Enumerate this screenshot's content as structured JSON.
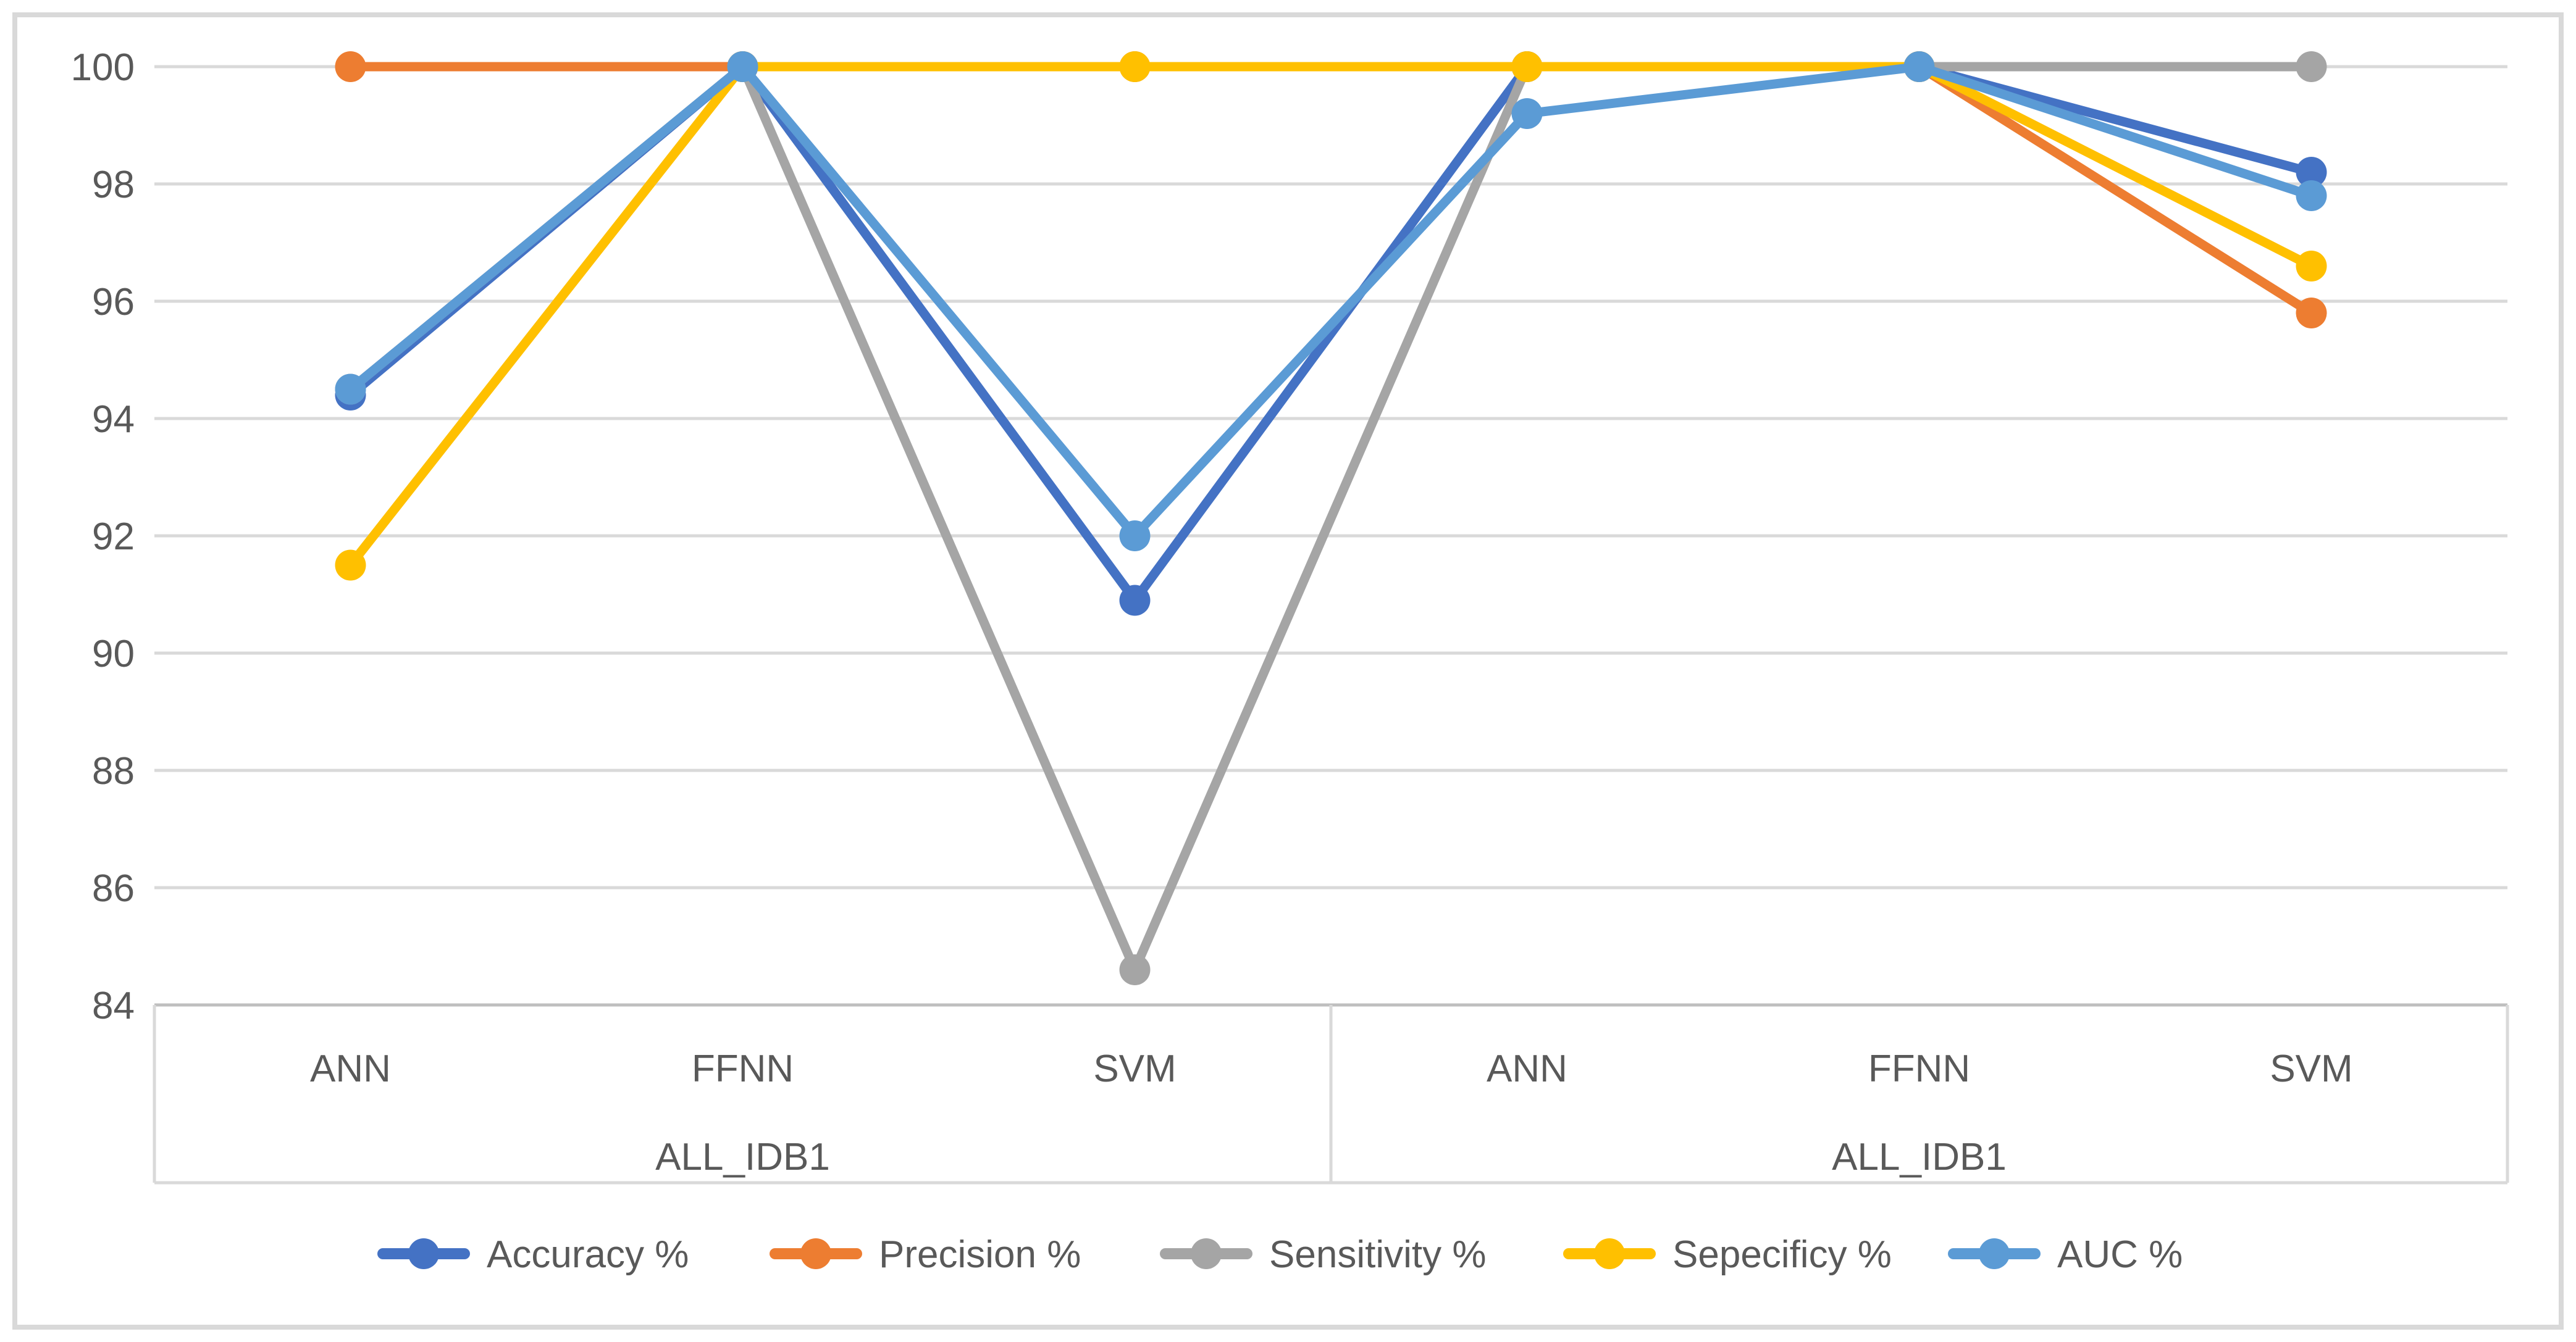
{
  "figure": {
    "title": "",
    "border_color": "#D9D9D9",
    "background": "#FFFFFF",
    "text_color": "#595959",
    "gridline_color": "#D9D9D9",
    "axis_line_color": "#BFBFBF"
  },
  "chart_data": {
    "type": "line",
    "title": "",
    "xlabel": "",
    "ylabel": "",
    "grid": true,
    "legend_position": "bottom",
    "y_axis": {
      "min": 84,
      "max": 100,
      "step": 2,
      "ticks": [
        100,
        98,
        96,
        94,
        92,
        90,
        88,
        86,
        84
      ],
      "tick_labels": [
        "100",
        "98",
        "96",
        "94",
        "92",
        "90",
        "88",
        "86",
        "84"
      ]
    },
    "x_axis": {
      "groups": [
        {
          "label": "ALL_IDB1",
          "categories": [
            "ANN",
            "FFNN",
            "SVM"
          ]
        },
        {
          "label": "ALL_IDB1",
          "categories": [
            "ANN",
            "FFNN",
            "SVM"
          ]
        }
      ]
    },
    "categories": [
      "ANN",
      "FFNN",
      "SVM",
      "ANN",
      "FFNN",
      "SVM"
    ],
    "series": [
      {
        "name": "Accuracy %",
        "color": "#4472C4",
        "values": [
          94.4,
          100,
          90.9,
          100,
          100,
          98.2
        ]
      },
      {
        "name": "Precision %",
        "color": "#ED7D31",
        "values": [
          100,
          100,
          100,
          100,
          100,
          95.8
        ]
      },
      {
        "name": "Sensitivity %",
        "color": "#A5A5A5",
        "values": [
          94.5,
          100,
          84.6,
          100,
          100,
          100
        ]
      },
      {
        "name": "Sepecificy %",
        "color": "#FFC000",
        "values": [
          91.5,
          100,
          100,
          100,
          100,
          96.6
        ]
      },
      {
        "name": "AUC %",
        "color": "#5B9BD5",
        "values": [
          94.5,
          100,
          92.0,
          99.2,
          100,
          97.8
        ]
      }
    ]
  }
}
